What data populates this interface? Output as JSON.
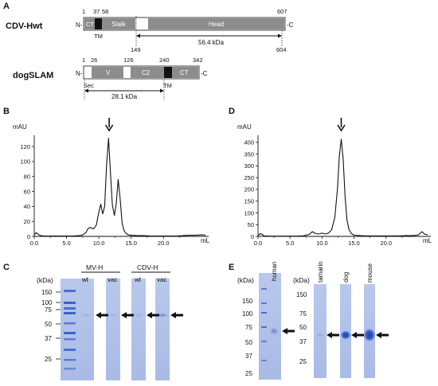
{
  "panels": {
    "A": {
      "letter": "A",
      "cdv": {
        "name": "CDV-Hwt",
        "n_term": "N-",
        "c_term": "-C",
        "top_ticks": [
          "1",
          "37",
          "58",
          "607"
        ],
        "domains": [
          "CT",
          "Stalk",
          "Head"
        ],
        "tm_label": "TM",
        "bottom_ticks": [
          "149",
          "604"
        ],
        "mass": "56.4 kDa"
      },
      "slam": {
        "name": "dogSLAM",
        "n_term": "N-",
        "c_term": "-C",
        "top_ticks": [
          "1",
          "26",
          "126",
          "240",
          "342"
        ],
        "domains": [
          "V",
          "C2",
          "CT"
        ],
        "sec_label": "Sec",
        "tm_label": "TM",
        "mass": "28.1 kDa"
      }
    },
    "B": {
      "letter": "B",
      "chart_data": {
        "type": "line",
        "ylabel": "mAU",
        "xlabel": "mL",
        "x_ticks": [
          "0.0",
          "5.0",
          "10.0",
          "15.0",
          "20.0"
        ],
        "y_ticks": [
          "0",
          "20",
          "40",
          "60",
          "80",
          "100",
          "120"
        ],
        "xlim": [
          0,
          27
        ],
        "ylim": [
          0,
          135
        ],
        "x": [
          0.0,
          0.3,
          0.6,
          1.0,
          1.5,
          2,
          3,
          4,
          5,
          6,
          7,
          7.5,
          8.0,
          8.3,
          8.6,
          8.9,
          9.2,
          9.6,
          10.0,
          10.3,
          10.6,
          10.9,
          11.2,
          11.5,
          11.8,
          12.1,
          12.4,
          12.7,
          13.0,
          13.3,
          13.6,
          13.9,
          14.2,
          14.5,
          15,
          16,
          17,
          18,
          19,
          20,
          21,
          22,
          23,
          24,
          25,
          26,
          26.5
        ],
        "y": [
          2,
          5,
          3,
          1,
          0.5,
          0.5,
          0.5,
          0.5,
          0.5,
          0.5,
          1,
          2,
          5,
          10,
          12,
          11,
          10,
          15,
          32,
          43,
          30,
          40,
          95,
          131,
          85,
          42,
          28,
          44,
          76,
          50,
          18,
          8,
          4,
          2,
          1.5,
          1,
          1,
          0.5,
          0.5,
          0.5,
          0.5,
          0.5,
          1,
          1.5,
          1.5,
          2,
          1.5
        ],
        "arrow_x": 11.6
      }
    },
    "D": {
      "letter": "D",
      "chart_data": {
        "type": "line",
        "ylabel": "mAU",
        "xlabel": "mL",
        "x_ticks": [
          "0.0",
          "5.0",
          "10.0",
          "15.0",
          "20.0"
        ],
        "y_ticks": [
          "0",
          "50",
          "100",
          "150",
          "200",
          "250",
          "300",
          "350",
          "400"
        ],
        "xlim": [
          0,
          27
        ],
        "ylim": [
          0,
          430
        ],
        "x": [
          0.0,
          0.4,
          1,
          2,
          3,
          4,
          5,
          6,
          7,
          8,
          8.5,
          9,
          9.5,
          10,
          10.5,
          11,
          11.5,
          12.0,
          12.4,
          12.7,
          13.0,
          13.3,
          13.6,
          13.9,
          14.2,
          14.6,
          15,
          16,
          17,
          18,
          19,
          20,
          21,
          22,
          23,
          24,
          25,
          25.6,
          26.0,
          26.5
        ],
        "y": [
          4,
          12,
          2,
          1,
          1,
          1,
          1,
          1,
          2,
          8,
          20,
          12,
          10,
          14,
          10,
          14,
          28,
          80,
          200,
          340,
          413,
          330,
          170,
          70,
          30,
          12,
          5,
          3,
          2,
          2,
          2,
          2,
          2,
          2,
          3,
          3,
          5,
          20,
          10,
          6
        ],
        "arrow_x": 13.0
      }
    },
    "C": {
      "letter": "C",
      "kda_label": "(kDa)",
      "markers": [
        "150",
        "100",
        "75",
        "50",
        "37",
        "25"
      ],
      "groups": [
        "MV-H",
        "CDV-H"
      ],
      "lanes": [
        "wt",
        "vac",
        "wt",
        "vac"
      ]
    },
    "E": {
      "letter": "E",
      "kda_label_left": "(kDa)",
      "markers_left": [
        "150",
        "100",
        "75",
        "50",
        "37",
        "25"
      ],
      "lane_left": "human",
      "kda_label_right": "(kDa)",
      "markers_right": [
        "150",
        "75",
        "50",
        "37",
        "25"
      ],
      "lanes_right": [
        "tamarin",
        "dog",
        "mouse"
      ]
    }
  }
}
